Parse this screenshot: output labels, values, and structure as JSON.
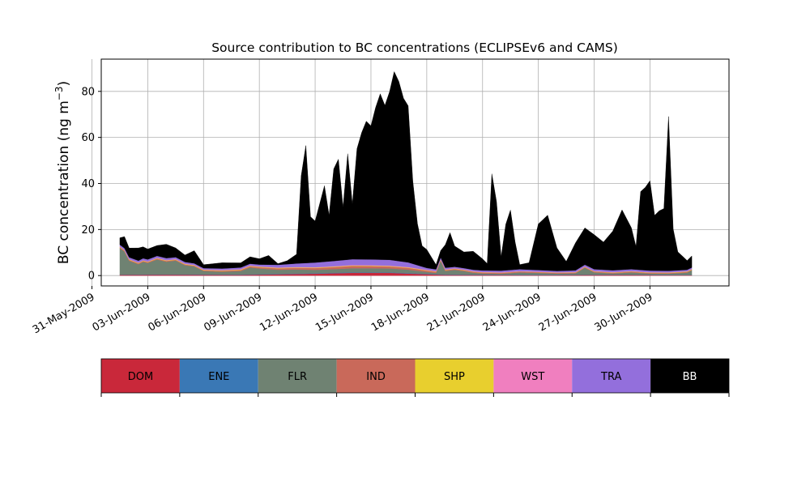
{
  "chart_data": {
    "type": "area",
    "stacked": true,
    "title": "Source contribution to BC concentrations (ECLIPSEv6 and CAMS)",
    "xlabel": "",
    "ylabel": "BC concentration (ng m",
    "ylabel_superscript": "−3",
    "ylabel_close": ")",
    "xlim": [
      "2009-05-31T12:00",
      "2009-07-04T06:00"
    ],
    "ylim": [
      -4.5,
      94
    ],
    "grid": true,
    "x_ticks": [
      "2009-05-31",
      "2009-06-03",
      "2009-06-06",
      "2009-06-09",
      "2009-06-12",
      "2009-06-15",
      "2009-06-18",
      "2009-06-21",
      "2009-06-24",
      "2009-06-27",
      "2009-06-30"
    ],
    "x_tick_labels": [
      "31-May-2009",
      "03-Jun-2009",
      "06-Jun-2009",
      "09-Jun-2009",
      "12-Jun-2009",
      "15-Jun-2009",
      "18-Jun-2009",
      "21-Jun-2009",
      "24-Jun-2009",
      "27-Jun-2009",
      "30-Jun-2009"
    ],
    "y_ticks": [
      0,
      20,
      40,
      60,
      80
    ],
    "y_tick_labels": [
      "0",
      "20",
      "40",
      "60",
      "80"
    ],
    "legend_position": "bottom colorbar",
    "series": [
      {
        "name": "DOM",
        "color": "#c9283a",
        "points": [
          [
            "2009-06-01T12:00",
            0.3
          ],
          [
            "2009-06-04",
            0.4
          ],
          [
            "2009-06-08",
            0.3
          ],
          [
            "2009-06-12",
            0.8
          ],
          [
            "2009-06-14",
            1.2
          ],
          [
            "2009-06-16",
            1.2
          ],
          [
            "2009-06-17T06:00",
            0.8
          ],
          [
            "2009-06-19",
            0.3
          ],
          [
            "2009-06-24",
            0.2
          ],
          [
            "2009-06-28",
            0.3
          ],
          [
            "2009-07-01",
            0.2
          ],
          [
            "2009-07-02T06:00",
            0.2
          ]
        ]
      },
      {
        "name": "ENE",
        "color": "#3a78b5",
        "points": [
          [
            "2009-06-01T12:00",
            0.1
          ],
          [
            "2009-06-14",
            0.2
          ],
          [
            "2009-07-02T06:00",
            0.1
          ]
        ]
      },
      {
        "name": "FLR",
        "color": "#6f8272",
        "points": [
          [
            "2009-06-01T12:00",
            11.5
          ],
          [
            "2009-06-01T18:00",
            10.0
          ],
          [
            "2009-06-02",
            6.0
          ],
          [
            "2009-06-02T12:00",
            4.5
          ],
          [
            "2009-06-02T18:00",
            5.5
          ],
          [
            "2009-06-03",
            5.0
          ],
          [
            "2009-06-03T12:00",
            6.5
          ],
          [
            "2009-06-04",
            5.5
          ],
          [
            "2009-06-04T12:00",
            6.0
          ],
          [
            "2009-06-05",
            4.0
          ],
          [
            "2009-06-05T12:00",
            3.5
          ],
          [
            "2009-06-06",
            1.5
          ],
          [
            "2009-06-07",
            1.2
          ],
          [
            "2009-06-08",
            1.5
          ],
          [
            "2009-06-08T12:00",
            3.0
          ],
          [
            "2009-06-09",
            2.5
          ],
          [
            "2009-06-10",
            1.8
          ],
          [
            "2009-06-11",
            1.8
          ],
          [
            "2009-06-12",
            1.5
          ],
          [
            "2009-06-13",
            1.6
          ],
          [
            "2009-06-14",
            1.8
          ],
          [
            "2009-06-15",
            1.8
          ],
          [
            "2009-06-16",
            1.7
          ],
          [
            "2009-06-17",
            1.5
          ],
          [
            "2009-06-18",
            0.8
          ],
          [
            "2009-06-18T12:00",
            0.5
          ],
          [
            "2009-06-18T18:00",
            5.8
          ],
          [
            "2009-06-19",
            1.5
          ],
          [
            "2009-06-19T12:00",
            2.0
          ],
          [
            "2009-06-20",
            1.5
          ],
          [
            "2009-06-20T12:00",
            0.8
          ],
          [
            "2009-06-21",
            0.5
          ],
          [
            "2009-06-22",
            0.4
          ],
          [
            "2009-06-23",
            1.0
          ],
          [
            "2009-06-24",
            0.8
          ],
          [
            "2009-06-25",
            0.5
          ],
          [
            "2009-06-26",
            0.6
          ],
          [
            "2009-06-26T12:00",
            3.0
          ],
          [
            "2009-06-27",
            1.0
          ],
          [
            "2009-06-28",
            0.5
          ],
          [
            "2009-06-29",
            1.0
          ],
          [
            "2009-06-30",
            0.5
          ],
          [
            "2009-07-01",
            0.5
          ],
          [
            "2009-07-02",
            1.0
          ],
          [
            "2009-07-02T06:00",
            2.0
          ]
        ]
      },
      {
        "name": "IND",
        "color": "#c9695a",
        "points": [
          [
            "2009-06-01T12:00",
            0.4
          ],
          [
            "2009-06-06",
            0.3
          ],
          [
            "2009-06-12",
            0.8
          ],
          [
            "2009-06-14",
            1.0
          ],
          [
            "2009-06-17",
            0.8
          ],
          [
            "2009-06-19",
            0.4
          ],
          [
            "2009-06-25",
            0.3
          ],
          [
            "2009-07-02T06:00",
            0.3
          ]
        ]
      },
      {
        "name": "SHP",
        "color": "#e8cf2e",
        "points": [
          [
            "2009-06-01T12:00",
            0.2
          ],
          [
            "2009-06-12",
            0.2
          ],
          [
            "2009-06-16",
            0.2
          ],
          [
            "2009-06-23",
            0.1
          ],
          [
            "2009-07-02T06:00",
            0.2
          ]
        ]
      },
      {
        "name": "WST",
        "color": "#f07fbf",
        "points": [
          [
            "2009-06-01T12:00",
            0.1
          ],
          [
            "2009-06-14",
            0.2
          ],
          [
            "2009-07-02T06:00",
            0.1
          ]
        ]
      },
      {
        "name": "TRA",
        "color": "#936fdc",
        "points": [
          [
            "2009-06-01T12:00",
            0.8
          ],
          [
            "2009-06-04",
            0.9
          ],
          [
            "2009-06-06",
            0.6
          ],
          [
            "2009-06-09",
            0.8
          ],
          [
            "2009-06-11",
            1.5
          ],
          [
            "2009-06-12",
            2.0
          ],
          [
            "2009-06-14",
            2.5
          ],
          [
            "2009-06-16",
            2.5
          ],
          [
            "2009-06-17",
            2.0
          ],
          [
            "2009-06-18",
            0.8
          ],
          [
            "2009-06-20",
            0.6
          ],
          [
            "2009-06-23",
            0.8
          ],
          [
            "2009-06-25",
            0.6
          ],
          [
            "2009-06-27",
            0.8
          ],
          [
            "2009-06-29",
            0.8
          ],
          [
            "2009-07-02T06:00",
            0.6
          ]
        ]
      },
      {
        "name": "BB",
        "color": "#000000",
        "points": [
          [
            "2009-06-01T12:00",
            3.0
          ],
          [
            "2009-06-01T18:00",
            5.0
          ],
          [
            "2009-06-02",
            4.0
          ],
          [
            "2009-06-02T12:00",
            5.5
          ],
          [
            "2009-06-03",
            4.5
          ],
          [
            "2009-06-03T12:00",
            4.5
          ],
          [
            "2009-06-04",
            6.0
          ],
          [
            "2009-06-04T12:00",
            4.0
          ],
          [
            "2009-06-05",
            3.0
          ],
          [
            "2009-06-05T12:00",
            5.5
          ],
          [
            "2009-06-06",
            1.5
          ],
          [
            "2009-06-07",
            2.5
          ],
          [
            "2009-06-08",
            2.0
          ],
          [
            "2009-06-08T12:00",
            3.0
          ],
          [
            "2009-06-09",
            2.5
          ],
          [
            "2009-06-09T12:00",
            4.0
          ],
          [
            "2009-06-10",
            0.5
          ],
          [
            "2009-06-10T12:00",
            1.5
          ],
          [
            "2009-06-11",
            4.0
          ],
          [
            "2009-06-11T06:00",
            38.0
          ],
          [
            "2009-06-11T12:00",
            51.0
          ],
          [
            "2009-06-11T18:00",
            20.0
          ],
          [
            "2009-06-12",
            18.0
          ],
          [
            "2009-06-12T12:00",
            33.0
          ],
          [
            "2009-06-12T18:00",
            20.0
          ],
          [
            "2009-06-13",
            40.0
          ],
          [
            "2009-06-13T06:00",
            44.0
          ],
          [
            "2009-06-13T12:00",
            23.0
          ],
          [
            "2009-06-13T18:00",
            46.0
          ],
          [
            "2009-06-14",
            24.0
          ],
          [
            "2009-06-14T06:00",
            48.0
          ],
          [
            "2009-06-14T12:00",
            55.0
          ],
          [
            "2009-06-14T18:00",
            60.0
          ],
          [
            "2009-06-15",
            58.0
          ],
          [
            "2009-06-15T06:00",
            66.0
          ],
          [
            "2009-06-15T12:00",
            72.0
          ],
          [
            "2009-06-15T18:00",
            67.0
          ],
          [
            "2009-06-16",
            73.0
          ],
          [
            "2009-06-16T06:00",
            82.0
          ],
          [
            "2009-06-16T12:00",
            78.0
          ],
          [
            "2009-06-16T18:00",
            71.0
          ],
          [
            "2009-06-17",
            68.0
          ],
          [
            "2009-06-17T06:00",
            36.0
          ],
          [
            "2009-06-17T12:00",
            18.0
          ],
          [
            "2009-06-17T18:00",
            9.0
          ],
          [
            "2009-06-18",
            8.0
          ],
          [
            "2009-06-18T12:00",
            2.0
          ],
          [
            "2009-06-18T18:00",
            3.0
          ],
          [
            "2009-06-19",
            10.0
          ],
          [
            "2009-06-19T06:00",
            15.0
          ],
          [
            "2009-06-19T12:00",
            9.0
          ],
          [
            "2009-06-20",
            7.0
          ],
          [
            "2009-06-20T12:00",
            8.0
          ],
          [
            "2009-06-21",
            5.0
          ],
          [
            "2009-06-21T06:00",
            3.0
          ],
          [
            "2009-06-21T12:00",
            42.0
          ],
          [
            "2009-06-21T18:00",
            30.0
          ],
          [
            "2009-06-22",
            6.0
          ],
          [
            "2009-06-22T06:00",
            20.0
          ],
          [
            "2009-06-22T12:00",
            26.0
          ],
          [
            "2009-06-22T18:00",
            12.0
          ],
          [
            "2009-06-23",
            2.0
          ],
          [
            "2009-06-23T12:00",
            3.0
          ],
          [
            "2009-06-24",
            20.0
          ],
          [
            "2009-06-24T12:00",
            24.0
          ],
          [
            "2009-06-25",
            10.0
          ],
          [
            "2009-06-25T12:00",
            4.0
          ],
          [
            "2009-06-26",
            12.0
          ],
          [
            "2009-06-26T12:00",
            16.0
          ],
          [
            "2009-06-27",
            15.0
          ],
          [
            "2009-06-27T12:00",
            12.0
          ],
          [
            "2009-06-28",
            17.0
          ],
          [
            "2009-06-28T12:00",
            26.0
          ],
          [
            "2009-06-29",
            18.0
          ],
          [
            "2009-06-29T06:00",
            10.0
          ],
          [
            "2009-06-29T12:00",
            34.0
          ],
          [
            "2009-06-29T18:00",
            36.0
          ],
          [
            "2009-06-30",
            39.0
          ],
          [
            "2009-06-30T06:00",
            24.0
          ],
          [
            "2009-06-30T12:00",
            26.0
          ],
          [
            "2009-06-30T18:00",
            27.0
          ],
          [
            "2009-07-01",
            67.0
          ],
          [
            "2009-07-01T06:00",
            18.0
          ],
          [
            "2009-07-01T12:00",
            8.0
          ],
          [
            "2009-07-02",
            4.0
          ],
          [
            "2009-07-02T06:00",
            5.0
          ]
        ]
      }
    ]
  }
}
